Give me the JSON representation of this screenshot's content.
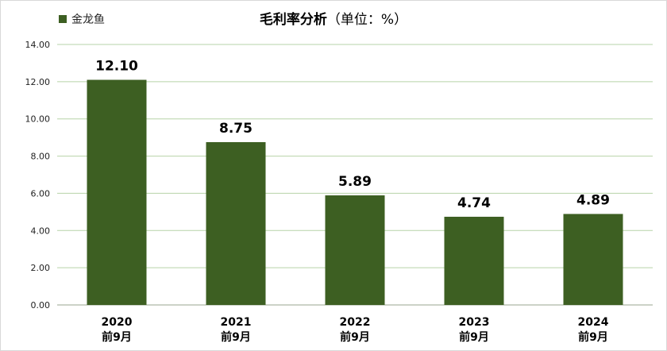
{
  "chart_data": {
    "type": "bar",
    "title": "毛利率分析",
    "subtitle": "（单位：%）",
    "categories": [
      [
        "2020",
        "前9月"
      ],
      [
        "2021",
        "前9月"
      ],
      [
        "2022",
        "前9月"
      ],
      [
        "2023",
        "前9月"
      ],
      [
        "2024",
        "前9月"
      ]
    ],
    "series": [
      {
        "name": "金龙鱼",
        "values": [
          12.1,
          8.75,
          5.89,
          4.74,
          4.89
        ],
        "labels": [
          "12.10",
          "8.75",
          "5.89",
          "4.74",
          "4.89"
        ],
        "color": "#3d5f22"
      }
    ],
    "ylim": [
      0,
      14
    ],
    "yticks": [
      "0.00",
      "2.00",
      "4.00",
      "6.00",
      "8.00",
      "10.00",
      "12.00",
      "14.00"
    ],
    "grid": true,
    "legend_position": "top-left",
    "gridline_color": "#b7d3a8"
  }
}
